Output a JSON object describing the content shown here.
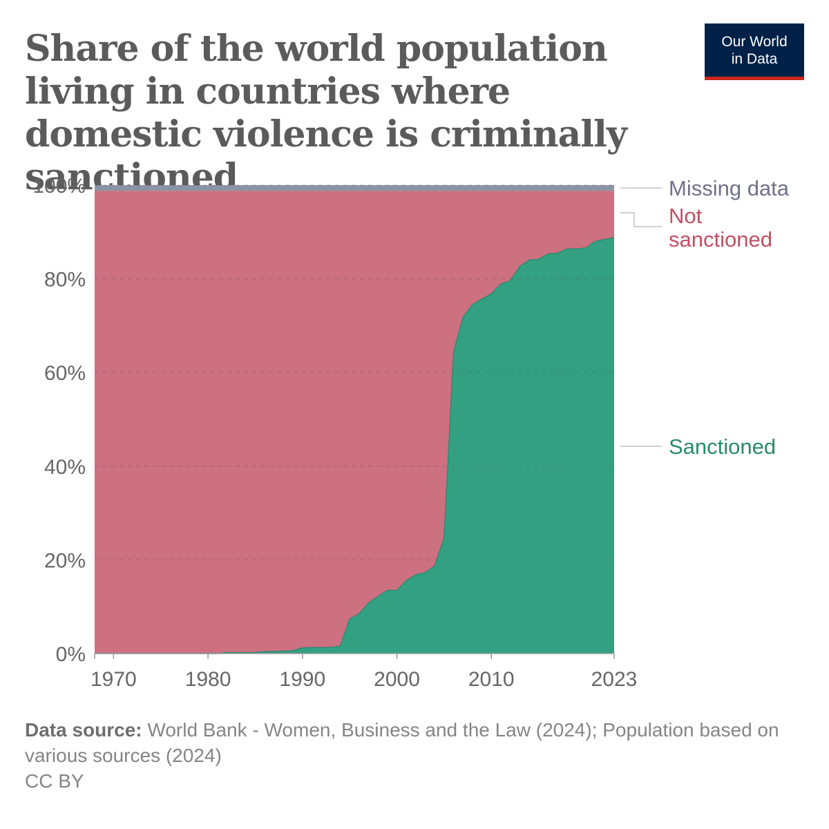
{
  "header": {
    "title": "Share of the world population living in countries where domestic violence is criminally sanctioned",
    "logo_line1": "Our World",
    "logo_line2": "in Data"
  },
  "footer": {
    "source_label": "Data source:",
    "source_text": "World Bank - Women, Business and the Law (2024); Population based on various sources (2024)",
    "license": "CC BY"
  },
  "colors": {
    "sanctioned": "#33a082",
    "sanctioned_line": "#2b8c72",
    "not_sanctioned": "#cd7080",
    "missing": "#8c93a5",
    "sanctioned_label": "#2a8a6a",
    "not_sanctioned_label": "#c44d64",
    "missing_label": "#6d7287",
    "logo_bg": "#002147",
    "logo_accent": "#ce261e"
  },
  "chart_data": {
    "type": "area",
    "stacked": true,
    "x": [
      1968,
      1969,
      1970,
      1971,
      1972,
      1973,
      1974,
      1975,
      1976,
      1977,
      1978,
      1979,
      1980,
      1981,
      1982,
      1983,
      1984,
      1985,
      1986,
      1987,
      1988,
      1989,
      1990,
      1991,
      1992,
      1993,
      1994,
      1995,
      1996,
      1997,
      1998,
      1999,
      2000,
      2001,
      2002,
      2003,
      2004,
      2005,
      2006,
      2007,
      2008,
      2009,
      2010,
      2011,
      2012,
      2013,
      2014,
      2015,
      2016,
      2017,
      2018,
      2019,
      2020,
      2021,
      2022,
      2023
    ],
    "series": [
      {
        "name": "Sanctioned",
        "values": [
          0,
          0,
          0,
          0,
          0,
          0,
          0,
          0,
          0,
          0,
          0,
          0,
          0,
          0,
          0.2,
          0.2,
          0.2,
          0.2,
          0.4,
          0.4,
          0.5,
          0.6,
          1.2,
          1.3,
          1.3,
          1.3,
          1.6,
          7.4,
          8.5,
          10.8,
          12.2,
          13.5,
          13.5,
          15.6,
          16.8,
          17.3,
          18.7,
          24.7,
          64.4,
          71.8,
          74.5,
          75.7,
          76.8,
          78.9,
          79.6,
          82.6,
          84,
          84.2,
          85.3,
          85.5,
          86.4,
          86.4,
          86.6,
          88,
          88.4,
          88.8
        ]
      },
      {
        "name": "Not sanctioned",
        "values": [
          98.8,
          98.8,
          98.8,
          98.8,
          98.8,
          98.8,
          98.8,
          98.8,
          98.8,
          98.8,
          98.8,
          98.8,
          98.8,
          98.8,
          98.6,
          98.6,
          98.6,
          98.6,
          98.4,
          98.4,
          98.3,
          98.2,
          97.6,
          97.5,
          97.5,
          97.5,
          97.2,
          91.4,
          90.3,
          88,
          86.6,
          85.3,
          85.3,
          83.2,
          82,
          81.5,
          80.1,
          74.1,
          34.4,
          27,
          24.3,
          23.1,
          22,
          19.9,
          19.2,
          16.2,
          14.8,
          14.6,
          13.5,
          13.3,
          12.4,
          12.4,
          12.2,
          10.8,
          10.4,
          10
        ]
      },
      {
        "name": "Missing data",
        "values": [
          1.2,
          1.2,
          1.2,
          1.2,
          1.2,
          1.2,
          1.2,
          1.2,
          1.2,
          1.2,
          1.2,
          1.2,
          1.2,
          1.2,
          1.2,
          1.2,
          1.2,
          1.2,
          1.2,
          1.2,
          1.2,
          1.2,
          1.2,
          1.2,
          1.2,
          1.2,
          1.2,
          1.2,
          1.2,
          1.2,
          1.2,
          1.2,
          1.2,
          1.2,
          1.2,
          1.2,
          1.2,
          1.2,
          1.2,
          1.2,
          1.2,
          1.2,
          1.2,
          1.2,
          1.2,
          1.2,
          1.2,
          1.2,
          1.2,
          1.2,
          1.2,
          1.2,
          1.2,
          1.2,
          1.2,
          1.2
        ]
      }
    ],
    "xlim": [
      1968,
      2023
    ],
    "ylim": [
      0,
      100
    ],
    "y_ticks": [
      0,
      20,
      40,
      60,
      80,
      100
    ],
    "y_tick_labels": [
      "0%",
      "20%",
      "40%",
      "60%",
      "80%",
      "100%"
    ],
    "x_ticks": [
      1970,
      1980,
      1990,
      2000,
      2010,
      2023
    ],
    "x_tick_labels": [
      "1970",
      "1980",
      "1990",
      "2000",
      "2010",
      "2023"
    ],
    "grid": "horizontal dashed",
    "labels": {
      "missing": "Missing data",
      "not_sanctioned_1": "Not",
      "not_sanctioned_2": "sanctioned",
      "sanctioned": "Sanctioned"
    },
    "legend": "inline-right"
  }
}
